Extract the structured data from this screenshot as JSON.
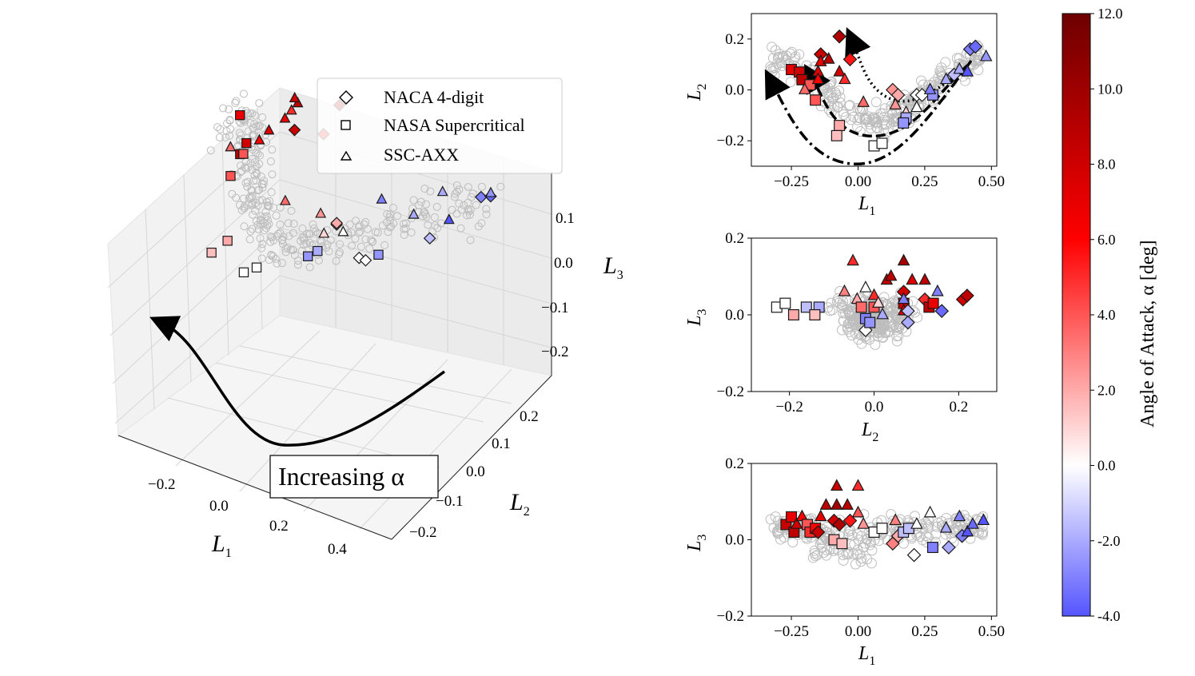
{
  "chart_data": [
    {
      "id": "3d",
      "type": "scatter",
      "xlabel": "L",
      "xlabel_sub": "1",
      "ylabel": "L",
      "ylabel_sub": "2",
      "zlabel": "L",
      "zlabel_sub": "3",
      "x_ticks": [
        "−0.2",
        "0.0",
        "0.2",
        "0.4"
      ],
      "y_ticks": [
        "0.2",
        "0.1",
        "0.0",
        "−0.1",
        "−0.2"
      ],
      "z_ticks": [
        "0.1",
        "0.0",
        "−0.1",
        "−0.2"
      ],
      "legend": [
        {
          "label": "NACA 4-digit",
          "marker": "diamond"
        },
        {
          "label": "NASA Supercritical",
          "marker": "square"
        },
        {
          "label": "SSC-AXX",
          "marker": "triangle"
        }
      ],
      "annotation": "Increasing α"
    },
    {
      "id": "L1-L2",
      "type": "scatter",
      "xlabel": "L",
      "xlabel_sub": "1",
      "ylabel": "L",
      "ylabel_sub": "2",
      "xlim": [
        -0.4,
        0.52
      ],
      "ylim": [
        -0.3,
        0.3
      ],
      "x_ticks": [
        -0.25,
        0.0,
        0.25,
        0.5
      ],
      "x_tick_labels": [
        "−0.25",
        "0.00",
        "0.25",
        "0.50"
      ],
      "y_ticks": [
        -0.2,
        0.0,
        0.2
      ],
      "y_tick_labels": [
        "−0.2",
        "0.0",
        "0.2"
      ],
      "points": [
        {
          "x": -0.07,
          "y": 0.21,
          "alpha": 9.5,
          "marker": "diamond"
        },
        {
          "x": -0.14,
          "y": 0.14,
          "alpha": 8.5,
          "marker": "diamond"
        },
        {
          "x": -0.03,
          "y": 0.12,
          "alpha": 5.5,
          "marker": "diamond"
        },
        {
          "x": -0.14,
          "y": 0.11,
          "alpha": 7.0,
          "marker": "triangle"
        },
        {
          "x": -0.11,
          "y": 0.12,
          "alpha": 9.0,
          "marker": "triangle"
        },
        {
          "x": -0.25,
          "y": 0.08,
          "alpha": 7.0,
          "marker": "square"
        },
        {
          "x": -0.22,
          "y": 0.07,
          "alpha": 8.0,
          "marker": "square"
        },
        {
          "x": -0.21,
          "y": 0.04,
          "alpha": 9.0,
          "marker": "square"
        },
        {
          "x": -0.15,
          "y": 0.07,
          "alpha": 7.5,
          "marker": "triangle"
        },
        {
          "x": -0.07,
          "y": 0.07,
          "alpha": 8.0,
          "marker": "triangle"
        },
        {
          "x": -0.05,
          "y": 0.04,
          "alpha": 5.0,
          "marker": "triangle"
        },
        {
          "x": -0.18,
          "y": 0.02,
          "alpha": 4.0,
          "marker": "square"
        },
        {
          "x": -0.15,
          "y": 0.04,
          "alpha": 6.0,
          "marker": "triangle"
        },
        {
          "x": -0.2,
          "y": 0.0,
          "alpha": 3.5,
          "marker": "triangle"
        },
        {
          "x": -0.16,
          "y": -0.04,
          "alpha": 4.0,
          "marker": "square"
        },
        {
          "x": -0.07,
          "y": -0.14,
          "alpha": 2.0,
          "marker": "square"
        },
        {
          "x": -0.08,
          "y": -0.18,
          "alpha": 1.5,
          "marker": "square"
        },
        {
          "x": 0.06,
          "y": -0.22,
          "alpha": 0.0,
          "marker": "square"
        },
        {
          "x": 0.09,
          "y": -0.21,
          "alpha": 0.0,
          "marker": "square"
        },
        {
          "x": 0.02,
          "y": -0.05,
          "alpha": 3.5,
          "marker": "triangle"
        },
        {
          "x": 0.13,
          "y": 0.0,
          "alpha": 2.5,
          "marker": "diamond"
        },
        {
          "x": 0.15,
          "y": -0.02,
          "alpha": 2.0,
          "marker": "diamond"
        },
        {
          "x": 0.14,
          "y": -0.06,
          "alpha": 2.5,
          "marker": "triangle"
        },
        {
          "x": 0.18,
          "y": -0.09,
          "alpha": 1.0,
          "marker": "triangle"
        },
        {
          "x": 0.22,
          "y": -0.07,
          "alpha": 0.0,
          "marker": "triangle"
        },
        {
          "x": 0.18,
          "y": -0.11,
          "alpha": -2.0,
          "marker": "square"
        },
        {
          "x": 0.17,
          "y": -0.13,
          "alpha": -2.5,
          "marker": "square"
        },
        {
          "x": 0.22,
          "y": -0.02,
          "alpha": 0.0,
          "marker": "diamond"
        },
        {
          "x": 0.24,
          "y": -0.02,
          "alpha": 0.0,
          "marker": "diamond"
        },
        {
          "x": 0.28,
          "y": -0.02,
          "alpha": -2.5,
          "marker": "square"
        },
        {
          "x": 0.27,
          "y": 0.0,
          "alpha": -3.0,
          "marker": "triangle"
        },
        {
          "x": 0.33,
          "y": 0.04,
          "alpha": -2.0,
          "marker": "triangle"
        },
        {
          "x": 0.36,
          "y": 0.06,
          "alpha": -1.5,
          "marker": "diamond"
        },
        {
          "x": 0.38,
          "y": 0.08,
          "alpha": -2.0,
          "marker": "triangle"
        },
        {
          "x": 0.41,
          "y": 0.07,
          "alpha": -4.0,
          "marker": "triangle"
        },
        {
          "x": 0.42,
          "y": 0.16,
          "alpha": -3.0,
          "marker": "diamond"
        },
        {
          "x": 0.44,
          "y": 0.17,
          "alpha": -3.5,
          "marker": "diamond"
        },
        {
          "x": 0.48,
          "y": 0.13,
          "alpha": -2.5,
          "marker": "triangle"
        }
      ]
    },
    {
      "id": "L2-L3",
      "type": "scatter",
      "xlabel": "L",
      "xlabel_sub": "2",
      "ylabel": "L",
      "ylabel_sub": "3",
      "xlim": [
        -0.29,
        0.29
      ],
      "ylim": [
        -0.2,
        0.2
      ],
      "x_ticks": [
        -0.2,
        0.0,
        0.2
      ],
      "x_tick_labels": [
        "−0.2",
        "0.0",
        "0.2"
      ],
      "y_ticks": [
        -0.2,
        0.0,
        0.2
      ],
      "y_tick_labels": [
        "−0.2",
        "0.0",
        "0.2"
      ],
      "points": [
        {
          "x": -0.23,
          "y": 0.02,
          "alpha": 0.0,
          "marker": "square"
        },
        {
          "x": -0.21,
          "y": 0.03,
          "alpha": 0.0,
          "marker": "square"
        },
        {
          "x": -0.19,
          "y": 0.0,
          "alpha": 2.0,
          "marker": "square"
        },
        {
          "x": -0.16,
          "y": 0.02,
          "alpha": -1.5,
          "marker": "square"
        },
        {
          "x": -0.13,
          "y": 0.02,
          "alpha": -2.0,
          "marker": "square"
        },
        {
          "x": -0.14,
          "y": 0.0,
          "alpha": 1.5,
          "marker": "square"
        },
        {
          "x": -0.07,
          "y": 0.06,
          "alpha": 3.0,
          "marker": "triangle"
        },
        {
          "x": -0.05,
          "y": 0.14,
          "alpha": 5.0,
          "marker": "triangle"
        },
        {
          "x": -0.04,
          "y": 0.04,
          "alpha": 2.0,
          "marker": "triangle"
        },
        {
          "x": -0.02,
          "y": 0.07,
          "alpha": 0.0,
          "marker": "triangle"
        },
        {
          "x": -0.02,
          "y": -0.04,
          "alpha": 0.0,
          "marker": "diamond"
        },
        {
          "x": -0.02,
          "y": -0.01,
          "alpha": -3.0,
          "marker": "square"
        },
        {
          "x": -0.01,
          "y": -0.02,
          "alpha": -2.5,
          "marker": "square"
        },
        {
          "x": -0.03,
          "y": 0.02,
          "alpha": 3.5,
          "marker": "square"
        },
        {
          "x": 0.0,
          "y": 0.05,
          "alpha": 5.0,
          "marker": "triangle"
        },
        {
          "x": 0.0,
          "y": 0.02,
          "alpha": 4.0,
          "marker": "square"
        },
        {
          "x": 0.01,
          "y": 0.03,
          "alpha": 1.0,
          "marker": "triangle"
        },
        {
          "x": 0.02,
          "y": 0.0,
          "alpha": -2.0,
          "marker": "triangle"
        },
        {
          "x": 0.03,
          "y": 0.09,
          "alpha": 8.5,
          "marker": "triangle"
        },
        {
          "x": 0.04,
          "y": 0.1,
          "alpha": 9.0,
          "marker": "triangle"
        },
        {
          "x": 0.07,
          "y": 0.14,
          "alpha": 10.0,
          "marker": "triangle"
        },
        {
          "x": 0.07,
          "y": 0.06,
          "alpha": 8.0,
          "marker": "diamond"
        },
        {
          "x": 0.07,
          "y": 0.03,
          "alpha": 8.0,
          "marker": "square"
        },
        {
          "x": 0.07,
          "y": 0.01,
          "alpha": 7.0,
          "marker": "triangle"
        },
        {
          "x": 0.07,
          "y": 0.04,
          "alpha": -3.0,
          "marker": "triangle"
        },
        {
          "x": 0.08,
          "y": 0.01,
          "alpha": -1.5,
          "marker": "diamond"
        },
        {
          "x": 0.08,
          "y": -0.02,
          "alpha": -2.0,
          "marker": "diamond"
        },
        {
          "x": 0.09,
          "y": 0.09,
          "alpha": 7.5,
          "marker": "triangle"
        },
        {
          "x": 0.12,
          "y": 0.09,
          "alpha": 9.0,
          "marker": "triangle"
        },
        {
          "x": 0.12,
          "y": 0.04,
          "alpha": 5.0,
          "marker": "diamond"
        },
        {
          "x": 0.13,
          "y": 0.02,
          "alpha": 9.0,
          "marker": "square"
        },
        {
          "x": 0.14,
          "y": 0.03,
          "alpha": 7.0,
          "marker": "square"
        },
        {
          "x": 0.15,
          "y": 0.06,
          "alpha": -3.0,
          "marker": "triangle"
        },
        {
          "x": 0.16,
          "y": 0.01,
          "alpha": -3.5,
          "marker": "diamond"
        },
        {
          "x": 0.21,
          "y": 0.04,
          "alpha": 8.0,
          "marker": "diamond"
        },
        {
          "x": 0.22,
          "y": 0.05,
          "alpha": 9.0,
          "marker": "diamond"
        }
      ]
    },
    {
      "id": "L1-L3",
      "type": "scatter",
      "xlabel": "L",
      "xlabel_sub": "1",
      "ylabel": "L",
      "ylabel_sub": "3",
      "xlim": [
        -0.4,
        0.52
      ],
      "ylim": [
        -0.2,
        0.2
      ],
      "x_ticks": [
        -0.25,
        0.0,
        0.25,
        0.5
      ],
      "x_tick_labels": [
        "−0.25",
        "0.00",
        "0.25",
        "0.50"
      ],
      "y_ticks": [
        -0.2,
        0.0,
        0.2
      ],
      "y_tick_labels": [
        "−0.2",
        "0.0",
        "0.2"
      ],
      "points": [
        {
          "x": -0.27,
          "y": 0.04,
          "alpha": 8.5,
          "marker": "square"
        },
        {
          "x": -0.25,
          "y": 0.06,
          "alpha": 7.0,
          "marker": "square"
        },
        {
          "x": -0.24,
          "y": 0.02,
          "alpha": 9.0,
          "marker": "square"
        },
        {
          "x": -0.23,
          "y": 0.04,
          "alpha": 8.0,
          "marker": "triangle"
        },
        {
          "x": -0.21,
          "y": 0.06,
          "alpha": 6.0,
          "marker": "triangle"
        },
        {
          "x": -0.19,
          "y": 0.04,
          "alpha": 4.0,
          "marker": "square"
        },
        {
          "x": -0.18,
          "y": 0.02,
          "alpha": 5.0,
          "marker": "square"
        },
        {
          "x": -0.16,
          "y": 0.03,
          "alpha": 6.0,
          "marker": "square"
        },
        {
          "x": -0.15,
          "y": 0.02,
          "alpha": 8.5,
          "marker": "diamond"
        },
        {
          "x": -0.14,
          "y": 0.06,
          "alpha": 7.0,
          "marker": "triangle"
        },
        {
          "x": -0.12,
          "y": 0.09,
          "alpha": 9.0,
          "marker": "triangle"
        },
        {
          "x": -0.09,
          "y": 0.05,
          "alpha": 8.0,
          "marker": "diamond"
        },
        {
          "x": -0.07,
          "y": 0.04,
          "alpha": 9.5,
          "marker": "diamond"
        },
        {
          "x": -0.08,
          "y": 0.09,
          "alpha": 10.0,
          "marker": "triangle"
        },
        {
          "x": -0.08,
          "y": 0.14,
          "alpha": 8.5,
          "marker": "triangle"
        },
        {
          "x": -0.04,
          "y": 0.09,
          "alpha": 9.0,
          "marker": "triangle"
        },
        {
          "x": -0.03,
          "y": 0.05,
          "alpha": 5.5,
          "marker": "diamond"
        },
        {
          "x": 0.0,
          "y": 0.07,
          "alpha": 4.0,
          "marker": "triangle"
        },
        {
          "x": 0.0,
          "y": 0.14,
          "alpha": 5.0,
          "marker": "triangle"
        },
        {
          "x": -0.09,
          "y": 0.0,
          "alpha": 2.0,
          "marker": "square"
        },
        {
          "x": -0.06,
          "y": -0.01,
          "alpha": 1.5,
          "marker": "square"
        },
        {
          "x": 0.02,
          "y": 0.04,
          "alpha": 2.5,
          "marker": "triangle"
        },
        {
          "x": 0.06,
          "y": 0.02,
          "alpha": 0.0,
          "marker": "square"
        },
        {
          "x": 0.09,
          "y": 0.03,
          "alpha": 0.0,
          "marker": "square"
        },
        {
          "x": 0.15,
          "y": 0.01,
          "alpha": 2.0,
          "marker": "diamond"
        },
        {
          "x": 0.13,
          "y": -0.01,
          "alpha": 3.0,
          "marker": "diamond"
        },
        {
          "x": 0.14,
          "y": 0.05,
          "alpha": 3.0,
          "marker": "triangle"
        },
        {
          "x": 0.17,
          "y": 0.02,
          "alpha": -1.5,
          "marker": "square"
        },
        {
          "x": 0.19,
          "y": 0.03,
          "alpha": -1.5,
          "marker": "square"
        },
        {
          "x": 0.22,
          "y": 0.04,
          "alpha": 0.0,
          "marker": "triangle"
        },
        {
          "x": 0.21,
          "y": -0.04,
          "alpha": 0.0,
          "marker": "diamond"
        },
        {
          "x": 0.27,
          "y": 0.07,
          "alpha": 0.0,
          "marker": "triangle"
        },
        {
          "x": 0.28,
          "y": -0.02,
          "alpha": -3.0,
          "marker": "square"
        },
        {
          "x": 0.33,
          "y": 0.03,
          "alpha": -2.0,
          "marker": "triangle"
        },
        {
          "x": 0.34,
          "y": -0.02,
          "alpha": -2.0,
          "marker": "diamond"
        },
        {
          "x": 0.38,
          "y": 0.06,
          "alpha": -3.0,
          "marker": "triangle"
        },
        {
          "x": 0.39,
          "y": 0.01,
          "alpha": -3.0,
          "marker": "diamond"
        },
        {
          "x": 0.41,
          "y": 0.02,
          "alpha": -4.0,
          "marker": "triangle"
        },
        {
          "x": 0.43,
          "y": 0.04,
          "alpha": -3.5,
          "marker": "triangle"
        },
        {
          "x": 0.47,
          "y": 0.05,
          "alpha": -4.0,
          "marker": "triangle"
        }
      ]
    }
  ],
  "colorbar": {
    "label": "Angle of Attack, α [deg]",
    "range": [
      -4.0,
      12.0
    ],
    "ticks": [
      "12.0",
      "10.0",
      "8.0",
      "6.0",
      "4.0",
      "2.0",
      "0.0",
      "-2.0",
      "-4.0"
    ],
    "tick_values": [
      12,
      10,
      8,
      6,
      4,
      2,
      0,
      -2,
      -4
    ],
    "colors": {
      "low": "#5555ff",
      "mid": "#ffffff",
      "high": "#7a0000",
      "upper_mid": "#ff0000"
    }
  },
  "marker_edge_color": "#1a1a1a",
  "background_points_color": "#bdbdbd"
}
